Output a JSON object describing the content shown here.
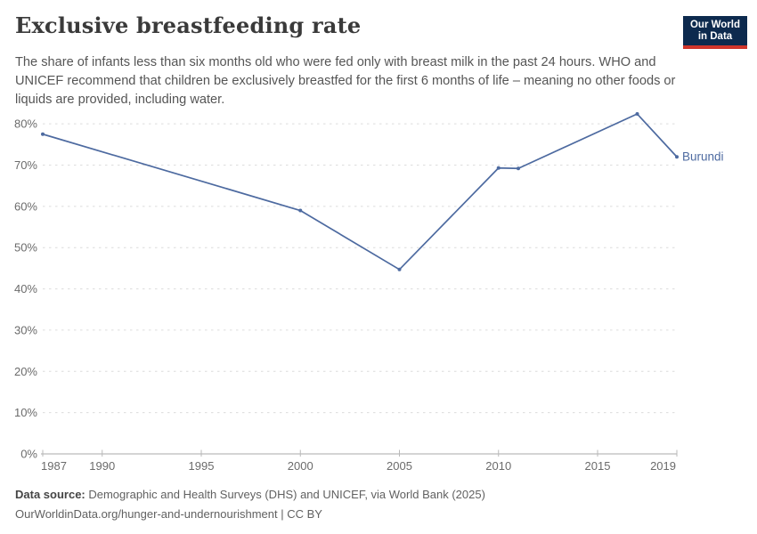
{
  "header": {
    "title": "Exclusive breastfeeding rate",
    "subtitle": "The share of infants less than six months old who were fed only with breast milk in the past 24 hours. WHO and UNICEF recommend that children be exclusively breastfed for the first 6 months of life – meaning no other foods or liquids are provided, including water.",
    "logo": {
      "line1": "Our World",
      "line2": "in Data"
    }
  },
  "chart_data": {
    "type": "line",
    "title": "Exclusive breastfeeding rate",
    "series": [
      {
        "name": "Burundi",
        "x": [
          1987,
          2000,
          2005,
          2010,
          2011,
          2017,
          2019
        ],
        "values": [
          77.5,
          59,
          44.7,
          69.3,
          69.2,
          82.4,
          72
        ]
      }
    ],
    "x_ticks": [
      1987,
      1990,
      1995,
      2000,
      2005,
      2010,
      2015,
      2019
    ],
    "y_ticks": [
      0,
      10,
      20,
      30,
      40,
      50,
      60,
      70,
      80
    ],
    "y_tick_suffix": "%",
    "xlim": [
      1987,
      2019
    ],
    "ylim": [
      0,
      84
    ],
    "xlabel": "",
    "ylabel": "",
    "grid": "horizontal-dashed",
    "legend": "inline-end-label",
    "line_color": "#4d6aa0"
  },
  "footer": {
    "source_label": "Data source:",
    "source_text": " Demographic and Health Surveys (DHS) and UNICEF, via World Bank (2025)",
    "link_line": "OurWorldinData.org/hunger-and-undernourishment | CC BY"
  },
  "colors": {
    "line": "#4d6aa0",
    "entity_label": "#4d6aa0",
    "grid": "#dcdcdc",
    "axis": "#a8a8a8",
    "tick_mark": "#b9b9b9",
    "logo_bg": "#0d2a4e",
    "logo_bar": "#d0352b"
  }
}
